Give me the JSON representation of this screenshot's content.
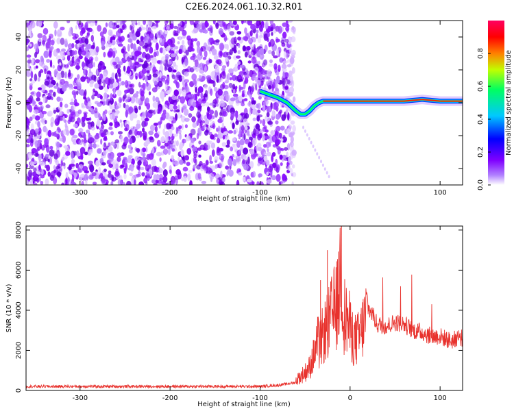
{
  "title": "C2E6.2024.061.10.32.R01",
  "chart_data": [
    {
      "type": "heatmap",
      "title": "",
      "xlabel": "Height of straight line (km)",
      "ylabel": "Frequency (Hz)",
      "xlim": [
        -360,
        125
      ],
      "ylim": [
        -50,
        50
      ],
      "xticks": [
        -300,
        -200,
        -100,
        0,
        100
      ],
      "yticks": [
        -40,
        -20,
        0,
        20,
        40
      ],
      "description_note": "Noise speckle from -360 to about -70 km; coherent signal trace near 0 Hz from about -100 km upward",
      "signal_trace": {
        "x": [
          -100,
          -90,
          -80,
          -70,
          -60,
          -55,
          -50,
          -45,
          -40,
          -35,
          -30,
          -20,
          -10,
          0,
          20,
          40,
          60,
          80,
          100,
          125
        ],
        "y": [
          7,
          5,
          3,
          0,
          -5,
          -7,
          -7,
          -5,
          -2,
          0,
          1,
          1,
          1,
          1,
          1,
          1,
          1,
          2,
          1,
          1
        ]
      },
      "colorbar": {
        "label": "Normalized spectral amplitude",
        "range": [
          0.0,
          1.0
        ],
        "ticks": [
          "0.0",
          "0.2",
          "0.4",
          "0.6",
          "0.8"
        ],
        "colors": [
          "#ffffff",
          "#8000ff",
          "#0000ff",
          "#00c8ff",
          "#00ff60",
          "#c0ff00",
          "#ff8000",
          "#ff0000",
          "#ff0060"
        ]
      }
    },
    {
      "type": "line",
      "title": "",
      "xlabel": "Height of straight line (km)",
      "ylabel": "SNR (10 * v/v)",
      "xlim": [
        -360,
        125
      ],
      "ylim": [
        0,
        8200
      ],
      "xticks": [
        -300,
        -200,
        -100,
        0,
        100
      ],
      "yticks": [
        0,
        2000,
        4000,
        6000,
        8000
      ],
      "color": "#e8322d",
      "series": [
        {
          "name": "SNR",
          "x": [
            -360,
            -300,
            -200,
            -150,
            -100,
            -80,
            -60,
            -50,
            -45,
            -40,
            -35,
            -30,
            -25,
            -20,
            -15,
            -12,
            -10,
            -8,
            -5,
            -2,
            0,
            5,
            10,
            15,
            20,
            25,
            30,
            40,
            50,
            60,
            70,
            80,
            90,
            100,
            110,
            115,
            120,
            125
          ],
          "y": [
            200,
            200,
            200,
            200,
            200,
            260,
            400,
            700,
            900,
            1400,
            2000,
            2800,
            3200,
            3800,
            4300,
            4700,
            7500,
            4200,
            3500,
            3600,
            3000,
            2500,
            2600,
            3300,
            4100,
            3800,
            3300,
            3200,
            3400,
            3300,
            3000,
            2900,
            2700,
            2700,
            2500,
            2500,
            2700,
            2600
          ]
        }
      ]
    }
  ]
}
